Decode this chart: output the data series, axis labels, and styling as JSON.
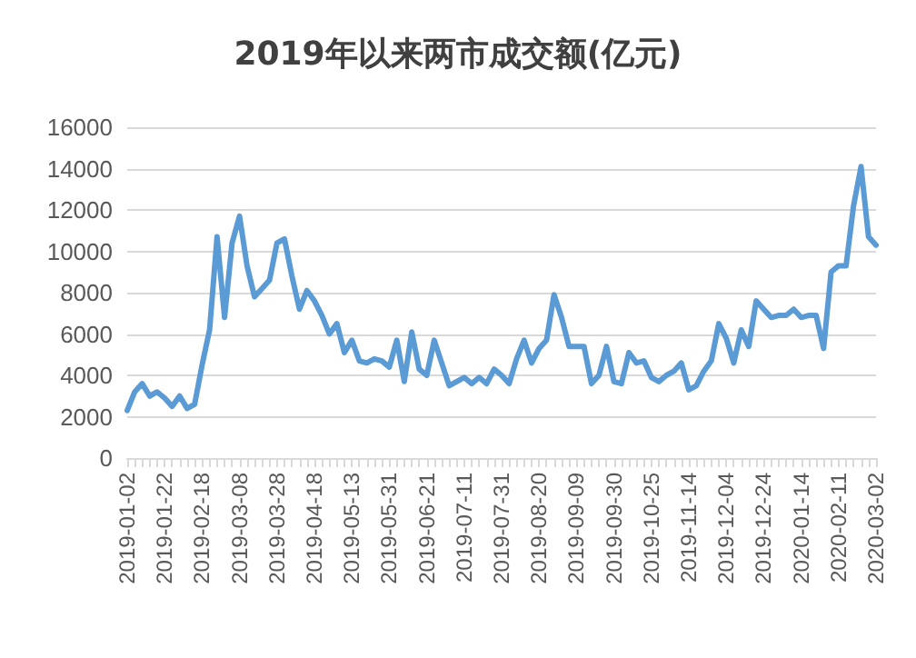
{
  "chart_data": {
    "type": "line",
    "title": "2019年以来两市成交额(亿元)",
    "categories": [
      "2019-01-02",
      null,
      null,
      null,
      null,
      "2019-01-22",
      null,
      null,
      null,
      null,
      "2019-02-18",
      null,
      null,
      null,
      null,
      "2019-03-08",
      null,
      null,
      null,
      null,
      "2019-03-28",
      null,
      null,
      null,
      null,
      "2019-04-18",
      null,
      null,
      null,
      null,
      "2019-05-13",
      null,
      null,
      null,
      null,
      "2019-05-31",
      null,
      null,
      null,
      null,
      "2019-06-21",
      null,
      null,
      null,
      null,
      "2019-07-11",
      null,
      null,
      null,
      null,
      "2019-07-31",
      null,
      null,
      null,
      null,
      "2019-08-20",
      null,
      null,
      null,
      null,
      "2019-09-09",
      null,
      null,
      null,
      null,
      "2019-09-30",
      null,
      null,
      null,
      null,
      "2019-10-25",
      null,
      null,
      null,
      null,
      "2019-11-14",
      null,
      null,
      null,
      null,
      "2019-12-04",
      null,
      null,
      null,
      null,
      "2019-12-24",
      null,
      null,
      null,
      null,
      "2020-01-14",
      null,
      null,
      null,
      null,
      "2020-02-11",
      null,
      null,
      null,
      null,
      "2020-03-02"
    ],
    "series": [
      {
        "color": "#5b9bd5",
        "values": [
          2300,
          3200,
          3600,
          3000,
          3200,
          2900,
          2500,
          3000,
          2400,
          2600,
          4500,
          6200,
          10700,
          6800,
          10400,
          11700,
          9300,
          7800,
          8200,
          8600,
          10400,
          10600,
          8800,
          7200,
          8100,
          7600,
          6900,
          6000,
          6500,
          5100,
          5700,
          4700,
          4600,
          4800,
          4700,
          4400,
          5700,
          3700,
          6100,
          4300,
          4000,
          5700,
          4600,
          3500,
          3700,
          3900,
          3600,
          3900,
          3600,
          4300,
          4000,
          3600,
          4800,
          5700,
          4600,
          5300,
          5700,
          7900,
          6800,
          5400,
          5400,
          5400,
          3600,
          4000,
          5400,
          3700,
          3600,
          5100,
          4600,
          4700,
          3900,
          3700,
          4000,
          4200,
          4600,
          3300,
          3500,
          4200,
          4700,
          6500,
          5800,
          4600,
          6200,
          5400,
          7600,
          7200,
          6800,
          6900,
          6900,
          7200,
          6800,
          6900,
          6900,
          5300,
          9000,
          9300,
          9300,
          12200,
          14100,
          10700,
          10300
        ]
      }
    ],
    "ylim": [
      0,
      16000
    ],
    "yticks": [
      0,
      2000,
      4000,
      6000,
      8000,
      10000,
      12000,
      14000,
      16000
    ],
    "grid": "y",
    "marker": "none",
    "line_style": "solid"
  }
}
